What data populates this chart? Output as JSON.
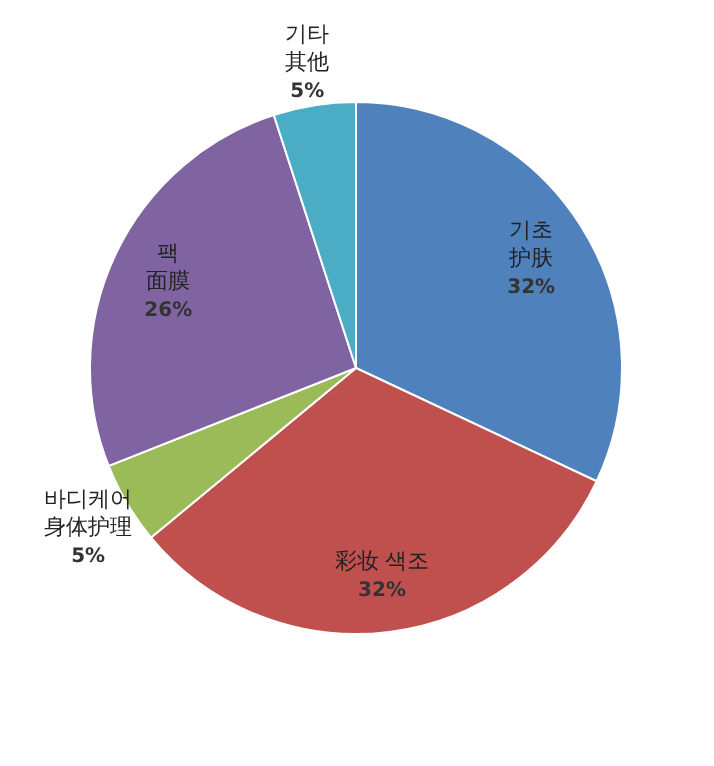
{
  "chart_data": {
    "type": "pie",
    "categories": [
      "기초\n护肤",
      "彩妆 색조",
      "바디케어\n身体护理",
      "팩\n面膜",
      "기타\n其他"
    ],
    "values": [
      32,
      32,
      5,
      26,
      5
    ],
    "value_labels": [
      "32%",
      "32%",
      "5%",
      "26%",
      "5%"
    ],
    "colors": [
      "#4f81bd",
      "#c0504d",
      "#9bbb59",
      "#8064a2",
      "#4bacc6"
    ]
  }
}
